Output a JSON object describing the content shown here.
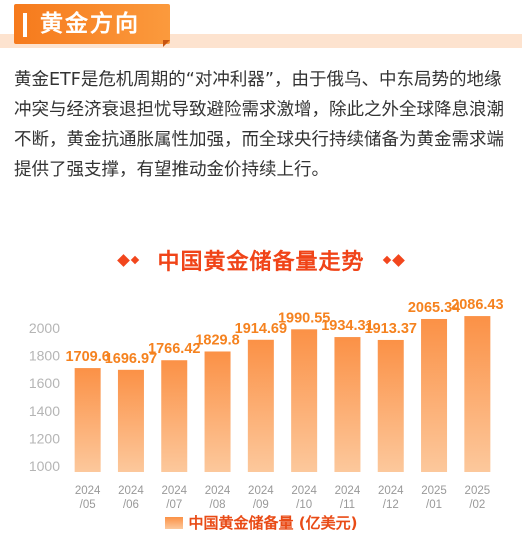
{
  "header": {
    "title": "黄金方向"
  },
  "paragraph": "黄金ETF是危机周期的“对冲利器”，由于俄乌、中东局势的地缘冲突与经济衰退担忧导致避险需求激增，除此之外全球降息浪潮不断，黄金抗通胀属性加强，而全球央行持续储备为黄金需求端提供了强支撑，有望推动金价持续上行。",
  "chart_data": {
    "type": "bar",
    "title": "中国黄金储备量走势",
    "categories": [
      [
        "2024",
        "/05"
      ],
      [
        "2024",
        "/06"
      ],
      [
        "2024",
        "/07"
      ],
      [
        "2024",
        "/08"
      ],
      [
        "2024",
        "/09"
      ],
      [
        "2024",
        "/10"
      ],
      [
        "2024",
        "/11"
      ],
      [
        "2024",
        "/12"
      ],
      [
        "2025",
        "/01"
      ],
      [
        "2025",
        "/02"
      ]
    ],
    "series": [
      {
        "name": "中国黄金储备量 (亿美元)",
        "values": [
          1709.6,
          1696.97,
          1766.42,
          1829.8,
          1914.69,
          1990.55,
          1934.31,
          1913.37,
          2065.34,
          2086.43
        ],
        "labels": [
          "1709.6",
          "1696.97",
          "1766.42",
          "1829.8",
          "1914.69",
          "1990.55",
          "1934.31",
          "1913.37",
          "2065.34",
          "2086.43"
        ]
      }
    ],
    "yticks": [
      "1000",
      "1200",
      "1400",
      "1600",
      "1800",
      "2000"
    ],
    "ylim": [
      1000,
      2100
    ],
    "grid": false,
    "legend_position": "bottom",
    "colors": {
      "bar_top": "#fb9146",
      "bar_bottom": "#fcc89c",
      "label": "#f5821f",
      "axis_text": "#b5b5b5",
      "title": "#f04418"
    }
  }
}
